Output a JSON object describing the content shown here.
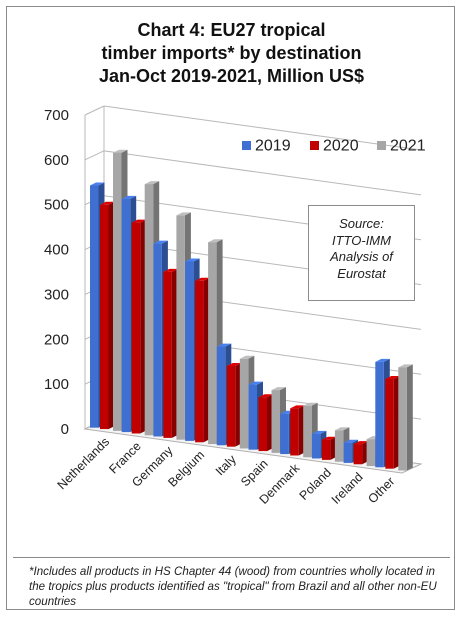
{
  "chart_data": {
    "type": "bar",
    "title_lines": [
      "Chart 4: EU27 tropical",
      "timber imports* by destination",
      "Jan-Oct 2019-2021, Million US$"
    ],
    "categories": [
      "Netherlands",
      "France",
      "Germany",
      "Belgium",
      "Italy",
      "Spain",
      "Denmark",
      "Poland",
      "Ireland",
      "Other"
    ],
    "series": [
      {
        "name": "2019",
        "color": "#3f6fd1",
        "values": [
          540,
          520,
          430,
          400,
          220,
          145,
          90,
          55,
          45,
          235
        ]
      },
      {
        "name": "2020",
        "color": "#c00000",
        "values": [
          500,
          470,
          370,
          360,
          180,
          120,
          105,
          45,
          45,
          200
        ]
      },
      {
        "name": "2021",
        "color": "#a6a6a6",
        "values": [
          620,
          560,
          500,
          450,
          200,
          140,
          115,
          70,
          60,
          230
        ]
      }
    ],
    "yticks": [
      0,
      100,
      200,
      300,
      400,
      500,
      600,
      700
    ],
    "ylim": [
      0,
      700
    ],
    "legend_position": "top-right",
    "grid": true,
    "three_d": true,
    "source_lines": [
      "Source:",
      "ITTO-IMM",
      "Analysis of",
      "Eurostat"
    ]
  },
  "footnote": "*Includes all products in HS Chapter 44 (wood) from countries wholly located in the tropics plus products identified as \"tropical\" from Brazil and all other non-EU countries"
}
